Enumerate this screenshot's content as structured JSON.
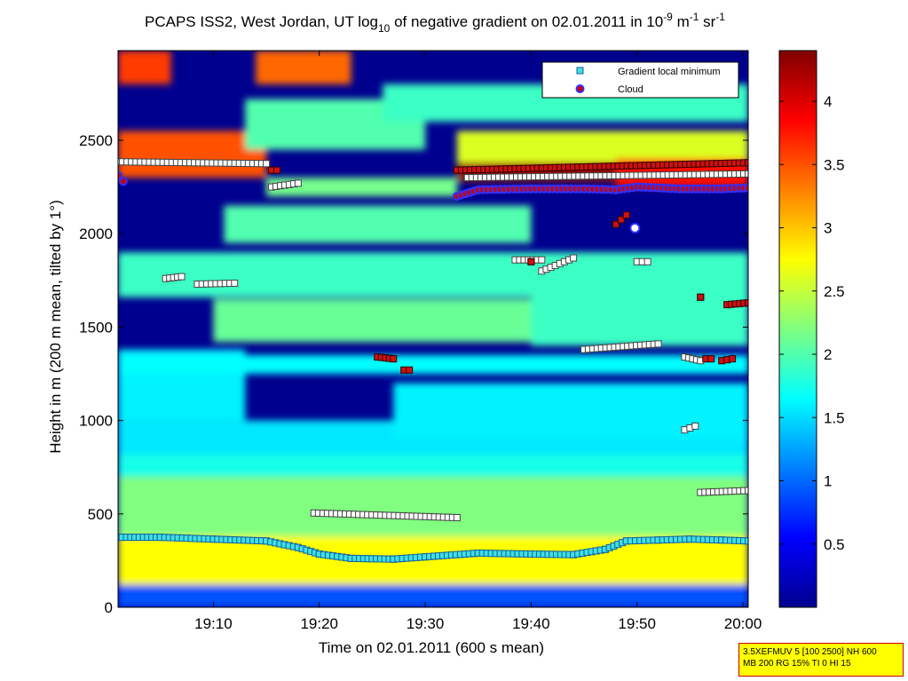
{
  "chart_data": {
    "type": "heatmap",
    "title": {
      "prefix": "PCAPS ISS2, West Jordan, UT log",
      "log_base": "10",
      "middle": " of negative gradient on 02.01.2011 in 10",
      "exp1": "-9",
      "unit1": " m",
      "exp2": "-1",
      "unit2": " sr",
      "exp3": "-1"
    },
    "xlabel": "Time on 02.01.2011 (600 s mean)",
    "ylabel": "Height in m (200 m mean, tilted by 1°)",
    "x_ticks": [
      "19:10",
      "19:20",
      "19:30",
      "19:40",
      "19:50",
      "20:00"
    ],
    "x_tick_minutes": [
      10,
      20,
      30,
      40,
      50,
      60
    ],
    "xlim_minutes": [
      1,
      60.5
    ],
    "y_ticks": [
      0,
      500,
      1000,
      1500,
      2000,
      2500
    ],
    "ylim": [
      0,
      2980
    ],
    "colorbar": {
      "ticks": [
        "0.5",
        "1",
        "1.5",
        "2",
        "2.5",
        "3",
        "3.5",
        "4"
      ],
      "tick_values": [
        0.5,
        1,
        1.5,
        2,
        2.5,
        3,
        3.5,
        4
      ],
      "range": [
        0,
        4.4
      ],
      "colormap": "jet"
    },
    "legend": {
      "placement": "top-right",
      "entries": [
        {
          "label": "Gradient local minimum",
          "marker": "square",
          "color": "#40e0e0"
        },
        {
          "label": "Cloud",
          "marker": "circle",
          "color": "#cc0000",
          "edge": "#3030ff"
        }
      ]
    },
    "field_layers": [
      {
        "t": [
          1,
          60.5
        ],
        "z": [
          0,
          120
        ],
        "v": 0.9
      },
      {
        "t": [
          1,
          60.5
        ],
        "z": [
          120,
          380
        ],
        "v": 2.75
      },
      {
        "t": [
          1,
          60.5
        ],
        "z": [
          380,
          700
        ],
        "v": 2.2
      },
      {
        "t": [
          1,
          60.5
        ],
        "z": [
          700,
          820
        ],
        "v": 1.75
      },
      {
        "t": [
          1,
          60.5
        ],
        "z": [
          820,
          1000
        ],
        "v": 1.55
      },
      {
        "t": [
          1,
          13
        ],
        "z": [
          1000,
          1380
        ],
        "v": 1.6
      },
      {
        "t": [
          1,
          60.5
        ],
        "z": [
          1250,
          1350
        ],
        "v": 1.65
      },
      {
        "t": [
          27,
          60.5
        ],
        "z": [
          900,
          1200
        ],
        "v": 1.6
      },
      {
        "t": [
          10,
          48
        ],
        "z": [
          1420,
          1650
        ],
        "v": 2.1
      },
      {
        "t": [
          40,
          60.5
        ],
        "z": [
          1400,
          1700
        ],
        "v": 1.9
      },
      {
        "t": [
          1,
          60.5
        ],
        "z": [
          1660,
          1900
        ],
        "v": 1.9
      },
      {
        "t": [
          11,
          40
        ],
        "z": [
          1950,
          2150
        ],
        "v": 2.0
      },
      {
        "t": [
          15,
          33
        ],
        "z": [
          2200,
          2300
        ],
        "v": 2.15
      },
      {
        "t": [
          1,
          15
        ],
        "z": [
          2300,
          2550
        ],
        "v": 3.5
      },
      {
        "t": [
          13,
          30
        ],
        "z": [
          2450,
          2720
        ],
        "v": 2.0
      },
      {
        "t": [
          33,
          60.5
        ],
        "z": [
          2280,
          2550
        ],
        "v": 2.6
      },
      {
        "t": [
          33,
          48
        ],
        "z": [
          2280,
          2380
        ],
        "v": 4.3
      },
      {
        "t": [
          48,
          60.5
        ],
        "z": [
          2250,
          2400
        ],
        "v": 3.8
      },
      {
        "t": [
          1,
          6
        ],
        "z": [
          2800,
          2980
        ],
        "v": 3.6
      },
      {
        "t": [
          14,
          23
        ],
        "z": [
          2800,
          2980
        ],
        "v": 3.4
      },
      {
        "t": [
          26,
          60.5
        ],
        "z": [
          2600,
          2800
        ],
        "v": 1.9
      }
    ],
    "series": [
      {
        "name": "Gradient local minimum",
        "marker_color": "#40e0e0",
        "edge": "#1060a0",
        "x_minutes": [
          1,
          5,
          10,
          15,
          18,
          20,
          23,
          27,
          30,
          35,
          40,
          44,
          47,
          49,
          52,
          55,
          58,
          60.5
        ],
        "y": [
          375,
          375,
          365,
          355,
          320,
          285,
          262,
          258,
          270,
          290,
          285,
          282,
          310,
          355,
          360,
          365,
          360,
          355
        ]
      },
      {
        "name": "Cloud",
        "marker_color": "#cc0000",
        "edge": "#3030ff",
        "x_minutes": [
          1,
          1.5,
          33,
          35,
          40,
          45,
          48,
          50,
          54,
          58,
          60.5,
          49.8
        ],
        "y": [
          2310,
          2280,
          2200,
          2235,
          2240,
          2240,
          2235,
          2250,
          2240,
          2240,
          2245,
          2030
        ]
      },
      {
        "marker_color": "#ffffff",
        "edge": "#444444",
        "points": [
          {
            "x": [
              1,
              15
            ],
            "y": [
              2385,
              2375
            ]
          },
          {
            "x": [
              15.5,
              18
            ],
            "y": [
              2250,
              2270
            ]
          },
          {
            "x": [
              5.5,
              7
            ],
            "y": [
              1760,
              1770
            ]
          },
          {
            "x": [
              8.5,
              12
            ],
            "y": [
              1730,
              1735
            ]
          },
          {
            "x": [
              19.5,
              33
            ],
            "y": [
              505,
              480
            ]
          },
          {
            "x": [
              34,
              60.5
            ],
            "y": [
              2300,
              2320
            ]
          },
          {
            "x": [
              38.5,
              41
            ],
            "y": [
              1860,
              1860
            ]
          },
          {
            "x": [
              41,
              44
            ],
            "y": [
              1800,
              1870
            ]
          },
          {
            "x": [
              45,
              52
            ],
            "y": [
              1380,
              1410
            ]
          },
          {
            "x": [
              50,
              51
            ],
            "y": [
              1850,
              1850
            ]
          },
          {
            "x": [
              54.5,
              55.5
            ],
            "y": [
              950,
              970
            ]
          },
          {
            "x": [
              54.5,
              56
            ],
            "y": [
              1340,
              1320
            ]
          },
          {
            "x": [
              56,
              60.5
            ],
            "y": [
              615,
              625
            ]
          }
        ]
      },
      {
        "marker_color": "#cc1111",
        "edge": "#330000",
        "points": [
          {
            "x": [
              15.5,
              16
            ],
            "y": [
              2340,
              2340
            ]
          },
          {
            "x": [
              25.5,
              27
            ],
            "y": [
              1340,
              1330
            ]
          },
          {
            "x": [
              28,
              28.5
            ],
            "y": [
              1270,
              1270
            ]
          },
          {
            "x": [
              33,
              60.5
            ],
            "y": [
              2340,
              2380
            ]
          },
          {
            "x": [
              40,
              40
            ],
            "y": [
              1850,
              1850
            ]
          },
          {
            "x": [
              48,
              49
            ],
            "y": [
              2050,
              2100
            ]
          },
          {
            "x": [
              56,
              56
            ],
            "y": [
              1660,
              1660
            ]
          },
          {
            "x": [
              58.5,
              60.5
            ],
            "y": [
              1620,
              1630
            ]
          },
          {
            "x": [
              58,
              59
            ],
            "y": [
              1320,
              1330
            ]
          },
          {
            "x": [
              56.5,
              57
            ],
            "y": [
              1330,
              1330
            ]
          }
        ]
      }
    ]
  },
  "stamp": {
    "line1": "3.5XEFMUV 5 [100 2500] NH 600",
    "line2": "MB 200 RG 15% TI 0 HI 15"
  }
}
